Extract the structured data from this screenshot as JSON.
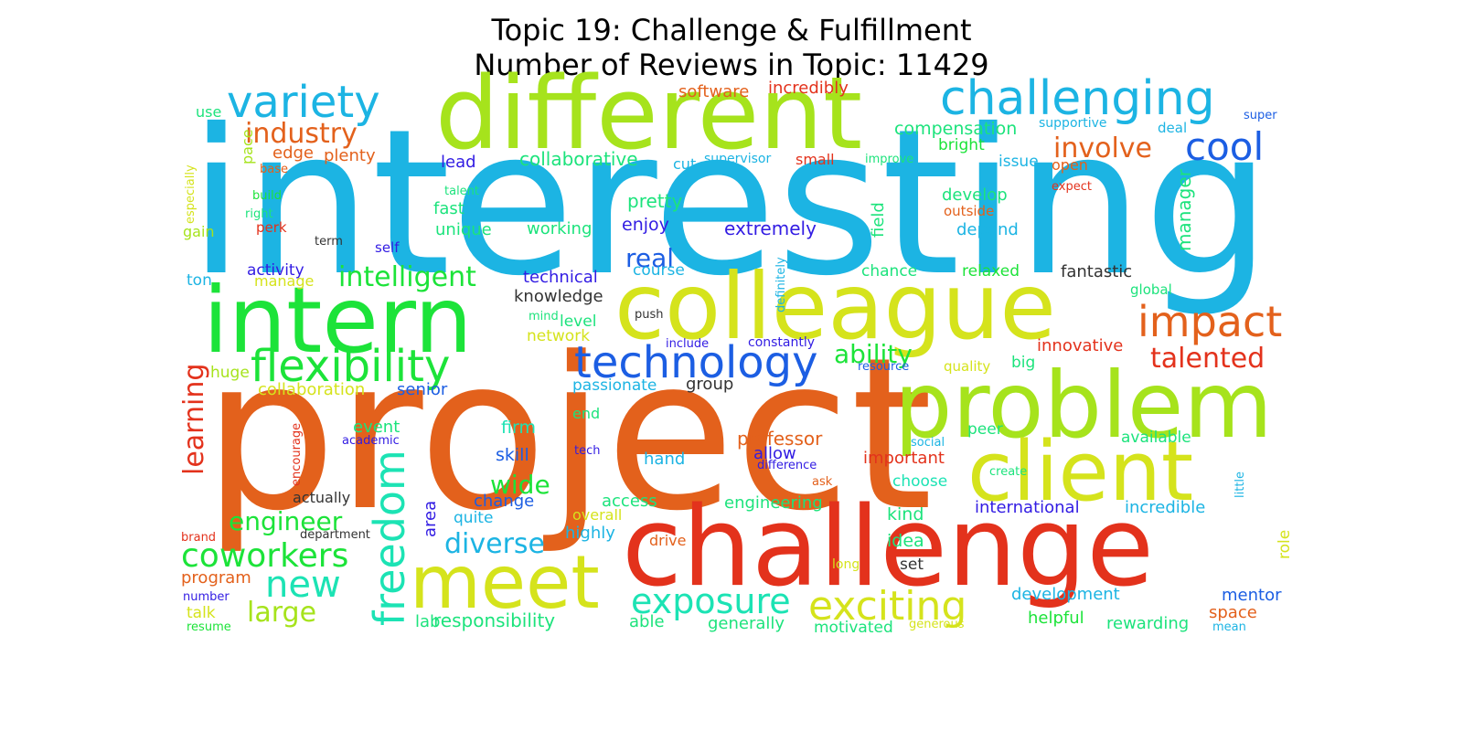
{
  "title_line1": "Topic 19: Challenge & Fulfillment",
  "title_line2": "Number of Reviews in Topic: 11429",
  "colors": {
    "cyan": "#1cb4e3",
    "lime": "#a6e31c",
    "yellow_green": "#d5e31c",
    "green": "#1ce339",
    "orange": "#e3611c",
    "red": "#e3321c",
    "blue": "#1c5ee3",
    "teal": "#1ce3b4",
    "indigo": "#321ce3",
    "mint": "#1ce37c"
  },
  "words": [
    {
      "text": "interesting"
    },
    {
      "text": "project"
    },
    {
      "text": "different"
    },
    {
      "text": "challenge"
    },
    {
      "text": "colleague"
    },
    {
      "text": "intern"
    },
    {
      "text": "problem"
    },
    {
      "text": "client"
    },
    {
      "text": "meet"
    },
    {
      "text": "challenging"
    },
    {
      "text": "variety"
    },
    {
      "text": "technology"
    },
    {
      "text": "flexibility"
    },
    {
      "text": "freedom"
    },
    {
      "text": "exciting"
    },
    {
      "text": "impact"
    },
    {
      "text": "cool"
    },
    {
      "text": "exposure"
    },
    {
      "text": "coworkers"
    },
    {
      "text": "new"
    },
    {
      "text": "intelligent"
    },
    {
      "text": "industry"
    },
    {
      "text": "involve"
    },
    {
      "text": "engineer"
    },
    {
      "text": "talented"
    },
    {
      "text": "diverse"
    },
    {
      "text": "large"
    },
    {
      "text": "learning"
    },
    {
      "text": "real"
    },
    {
      "text": "wide"
    },
    {
      "text": "ability"
    },
    {
      "text": "responsibility"
    },
    {
      "text": "professor"
    },
    {
      "text": "extremely"
    },
    {
      "text": "pretty"
    },
    {
      "text": "collaborative"
    },
    {
      "text": "compensation"
    },
    {
      "text": "software"
    },
    {
      "text": "incredibly"
    },
    {
      "text": "edge"
    },
    {
      "text": "plenty"
    },
    {
      "text": "lead"
    },
    {
      "text": "fast"
    },
    {
      "text": "unique"
    },
    {
      "text": "working"
    },
    {
      "text": "enjoy"
    },
    {
      "text": "develop"
    },
    {
      "text": "depend"
    },
    {
      "text": "manager"
    },
    {
      "text": "field"
    },
    {
      "text": "chance"
    },
    {
      "text": "relaxed"
    },
    {
      "text": "fantastic"
    },
    {
      "text": "knowledge"
    },
    {
      "text": "technical"
    },
    {
      "text": "course"
    },
    {
      "text": "level"
    },
    {
      "text": "network"
    },
    {
      "text": "innovative"
    },
    {
      "text": "group"
    },
    {
      "text": "passionate"
    },
    {
      "text": "collaboration"
    },
    {
      "text": "senior"
    },
    {
      "text": "huge"
    },
    {
      "text": "event"
    },
    {
      "text": "firm"
    },
    {
      "text": "skill"
    },
    {
      "text": "change"
    },
    {
      "text": "area"
    },
    {
      "text": "quite"
    },
    {
      "text": "overall"
    },
    {
      "text": "highly"
    },
    {
      "text": "access"
    },
    {
      "text": "engineering"
    },
    {
      "text": "kind"
    },
    {
      "text": "idea"
    },
    {
      "text": "international"
    },
    {
      "text": "incredible"
    },
    {
      "text": "development"
    },
    {
      "text": "helpful"
    },
    {
      "text": "rewarding"
    },
    {
      "text": "mentor"
    },
    {
      "text": "space"
    },
    {
      "text": "generally"
    },
    {
      "text": "motivated"
    },
    {
      "text": "program"
    },
    {
      "text": "talk"
    },
    {
      "text": "lab"
    },
    {
      "text": "able"
    },
    {
      "text": "hand"
    },
    {
      "text": "allow"
    },
    {
      "text": "important"
    },
    {
      "text": "choose"
    },
    {
      "text": "peer"
    },
    {
      "text": "available"
    },
    {
      "text": "big"
    },
    {
      "text": "quality"
    },
    {
      "text": "resource"
    },
    {
      "text": "constantly"
    },
    {
      "text": "include"
    },
    {
      "text": "push"
    },
    {
      "text": "mind"
    },
    {
      "text": "global"
    },
    {
      "text": "activity"
    },
    {
      "text": "manage"
    },
    {
      "text": "self"
    },
    {
      "text": "term"
    },
    {
      "text": "ton"
    },
    {
      "text": "gain"
    },
    {
      "text": "perk"
    },
    {
      "text": "right"
    },
    {
      "text": "build"
    },
    {
      "text": "base"
    },
    {
      "text": "especially"
    },
    {
      "text": "pace"
    },
    {
      "text": "use"
    },
    {
      "text": "talent"
    },
    {
      "text": "cut"
    },
    {
      "text": "supervisor"
    },
    {
      "text": "small"
    },
    {
      "text": "improve"
    },
    {
      "text": "bright"
    },
    {
      "text": "issue"
    },
    {
      "text": "open"
    },
    {
      "text": "expect"
    },
    {
      "text": "outside"
    },
    {
      "text": "supportive"
    },
    {
      "text": "deal"
    },
    {
      "text": "super"
    },
    {
      "text": "definitely"
    },
    {
      "text": "end"
    },
    {
      "text": "tech"
    },
    {
      "text": "academic"
    },
    {
      "text": "encourage"
    },
    {
      "text": "difference"
    },
    {
      "text": "social"
    },
    {
      "text": "create"
    },
    {
      "text": "ask"
    },
    {
      "text": "little"
    },
    {
      "text": "role"
    },
    {
      "text": "actually"
    },
    {
      "text": "department"
    },
    {
      "text": "brand"
    },
    {
      "text": "number"
    },
    {
      "text": "resume"
    },
    {
      "text": "drive"
    },
    {
      "text": "long"
    },
    {
      "text": "set"
    },
    {
      "text": "generous"
    },
    {
      "text": "mean"
    }
  ]
}
